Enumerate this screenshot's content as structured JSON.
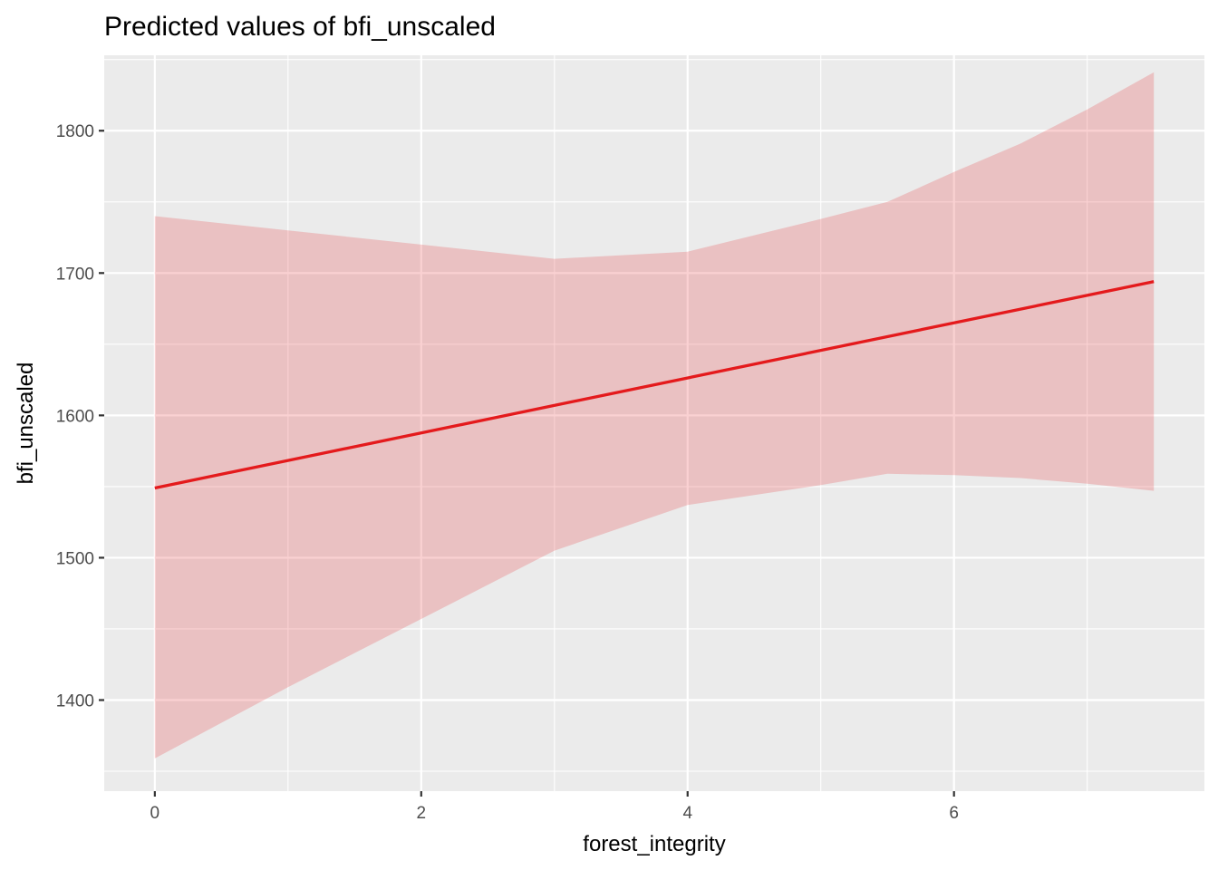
{
  "chart_data": {
    "type": "line",
    "title": "Predicted values of bfi_unscaled",
    "xlabel": "forest_integrity",
    "ylabel": "bfi_unscaled",
    "xlim": [
      -0.38,
      7.88
    ],
    "ylim": [
      1336,
      1853
    ],
    "x_ticks": [
      0,
      2,
      4,
      6
    ],
    "x_tick_labels": [
      "0",
      "2",
      "4",
      "6"
    ],
    "x_minor_ticks": [
      1,
      3,
      5,
      7
    ],
    "y_ticks": [
      1400,
      1500,
      1600,
      1700,
      1800
    ],
    "y_tick_labels": [
      "1400",
      "1500",
      "1600",
      "1700",
      "1800"
    ],
    "y_minor_ticks": [
      1350,
      1450,
      1550,
      1650,
      1750,
      1850
    ],
    "grid": true,
    "legend": "none",
    "colors": {
      "line": "#e41a1c",
      "ribbon": "#e41a1c",
      "panel_background": "#ebebeb",
      "grid": "#ffffff"
    },
    "series": [
      {
        "x": [
          0,
          7.5
        ],
        "y": [
          1549,
          1694
        ]
      }
    ],
    "ribbon": {
      "x": [
        0,
        1,
        2,
        3,
        4,
        5,
        5.5,
        6,
        6.5,
        7,
        7.5
      ],
      "lower": [
        1359,
        1409,
        1457,
        1505,
        1537,
        1551,
        1559,
        1558,
        1556,
        1552,
        1547
      ],
      "upper": [
        1740,
        1730,
        1720,
        1710,
        1715,
        1738,
        1750,
        1771,
        1791,
        1815,
        1841
      ]
    }
  }
}
